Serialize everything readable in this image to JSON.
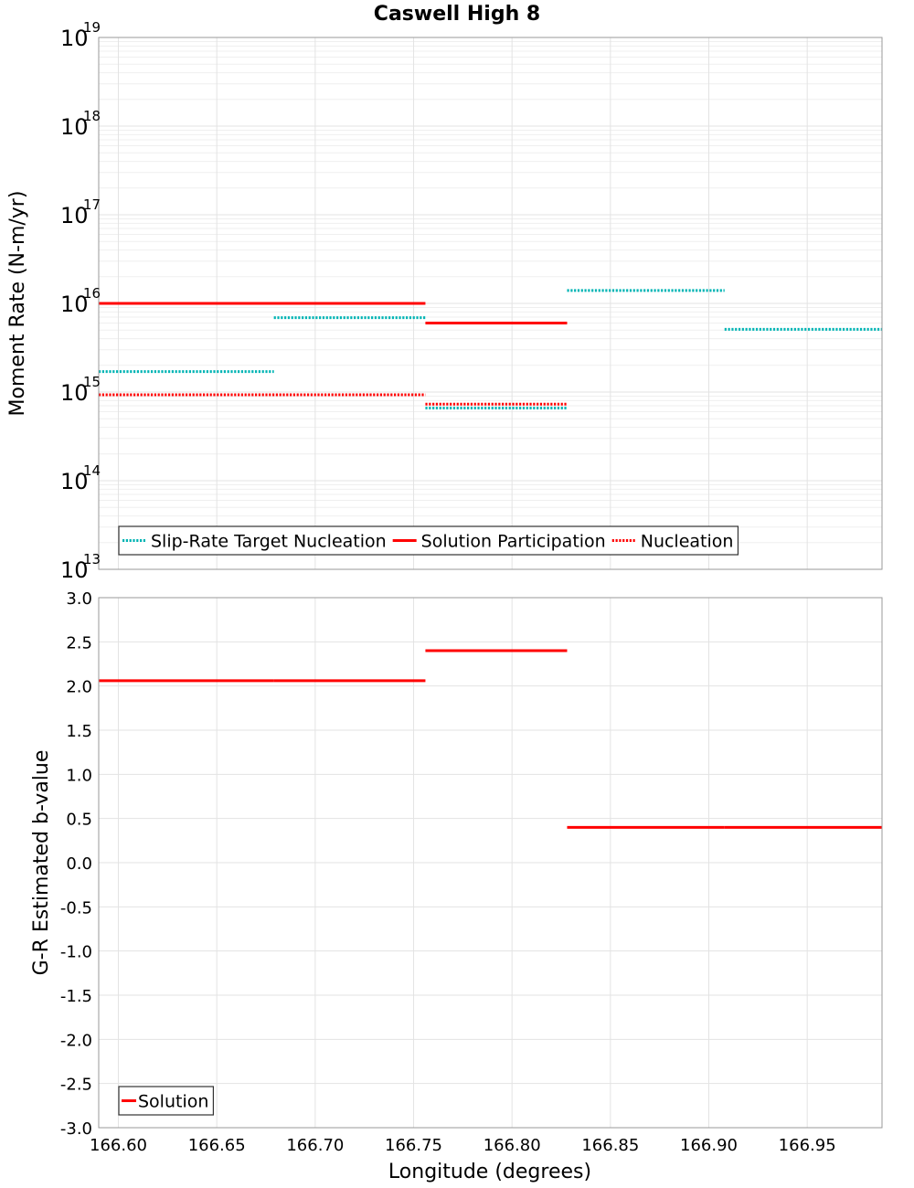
{
  "chart_data": [
    {
      "type": "line",
      "title": "Caswell High 8",
      "ylabel": "Moment Rate (N-m/yr)",
      "xlabel": "",
      "y_scale": "log",
      "ylim": [
        10000000000000.0,
        1e+19
      ],
      "xlim": [
        166.59,
        166.988
      ],
      "y_ticks": [
        {
          "base": "10",
          "exp": "13"
        },
        {
          "base": "10",
          "exp": "14"
        },
        {
          "base": "10",
          "exp": "15"
        },
        {
          "base": "10",
          "exp": "16"
        },
        {
          "base": "10",
          "exp": "17"
        },
        {
          "base": "10",
          "exp": "18"
        },
        {
          "base": "10",
          "exp": "19"
        }
      ],
      "grid": true,
      "legend_position": "bottom-left",
      "series": [
        {
          "name": "Slip-Rate Target Nucleation",
          "color": "#00b4b4",
          "style": "dotted",
          "segments": [
            {
              "x0": 166.59,
              "x1": 166.679,
              "y": 1700000000000000.0
            },
            {
              "x0": 166.679,
              "x1": 166.756,
              "y": 6900000000000000.0
            },
            {
              "x0": 166.756,
              "x1": 166.828,
              "y": 660000000000000.0
            },
            {
              "x0": 166.828,
              "x1": 166.908,
              "y": 1.4e+16
            },
            {
              "x0": 166.908,
              "x1": 166.988,
              "y": 5100000000000000.0
            }
          ]
        },
        {
          "name": "Solution Participation",
          "color": "#ff0000",
          "style": "solid",
          "segments": [
            {
              "x0": 166.59,
              "x1": 166.756,
              "y": 1e+16
            },
            {
              "x0": 166.756,
              "x1": 166.828,
              "y": 6000000000000000.0
            }
          ]
        },
        {
          "name": "Nucleation",
          "color": "#ff0000",
          "style": "dotted",
          "segments": [
            {
              "x0": 166.59,
              "x1": 166.756,
              "y": 930000000000000.0
            },
            {
              "x0": 166.756,
              "x1": 166.828,
              "y": 730000000000000.0
            }
          ]
        }
      ]
    },
    {
      "type": "line",
      "title": "",
      "ylabel": "G-R Estimated b-value",
      "xlabel": "Longitude (degrees)",
      "y_scale": "linear",
      "ylim": [
        -3.0,
        3.0
      ],
      "xlim": [
        166.59,
        166.988
      ],
      "y_ticks": [
        "-3.0",
        "-2.5",
        "-2.0",
        "-1.5",
        "-1.0",
        "-0.5",
        "0.0",
        "0.5",
        "1.0",
        "1.5",
        "2.0",
        "2.5",
        "3.0"
      ],
      "x_ticks": [
        "166.60",
        "166.65",
        "166.70",
        "166.75",
        "166.80",
        "166.85",
        "166.90",
        "166.95"
      ],
      "grid": true,
      "legend_position": "bottom-left",
      "series": [
        {
          "name": "Solution",
          "color": "#ff0000",
          "style": "solid",
          "segments": [
            {
              "x0": 166.59,
              "x1": 166.679,
              "y": 2.06
            },
            {
              "x0": 166.679,
              "x1": 166.756,
              "y": 2.06
            },
            {
              "x0": 166.756,
              "x1": 166.828,
              "y": 2.4
            },
            {
              "x0": 166.828,
              "x1": 166.908,
              "y": 0.4
            },
            {
              "x0": 166.908,
              "x1": 166.988,
              "y": 0.4
            }
          ]
        }
      ]
    }
  ]
}
